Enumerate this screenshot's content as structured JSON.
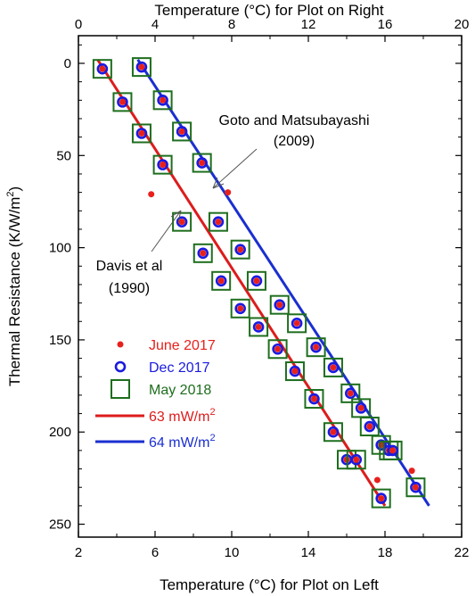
{
  "chart_data": {
    "type": "scatter",
    "x_bottom_label": "Temperature (°C) for Plot on Left",
    "x_top_label": "Temperature (°C) for Plot on Right",
    "ylabel_main": "Thermal Resistance (K/W/m",
    "ylabel_sup": "2",
    "ylabel_end": ")",
    "x_bottom_range": [
      2,
      22
    ],
    "x_top_range": [
      0,
      20
    ],
    "y_range": [
      -15,
      257
    ],
    "y_inverted": true,
    "x_bottom_ticks": [
      "2",
      "6",
      "10",
      "14",
      "18",
      "22"
    ],
    "x_bottom_tick_values": [
      2,
      6,
      10,
      14,
      18,
      22
    ],
    "x_top_ticks": [
      "0",
      "4",
      "8",
      "12",
      "16",
      "20"
    ],
    "x_top_tick_values": [
      0,
      4,
      8,
      12,
      16,
      20
    ],
    "y_ticks": [
      "0",
      "50",
      "100",
      "150",
      "200",
      "250"
    ],
    "y_tick_values": [
      0,
      50,
      100,
      150,
      200,
      250
    ],
    "colors": {
      "june": "#e8201c",
      "dec": "#1a1ae0",
      "may": "#1e6e1e",
      "fit_left": "#dd1c1c",
      "fit_right": "#1a2fd0"
    },
    "fits": [
      {
        "legend_label": "63 mW/m",
        "legend_sup": "2",
        "color": "#dd1c1c",
        "axis": "bottom",
        "x": [
          3.0,
          18.0
        ],
        "y": [
          -2,
          240
        ]
      },
      {
        "legend_label": "64 mW/m",
        "legend_sup": "2",
        "color": "#1a2fd0",
        "axis": "bottom",
        "x": [
          5.1,
          20.3
        ],
        "y": [
          -2,
          240
        ]
      }
    ],
    "left_profile_x": [
      3.25,
      4.3,
      5.3,
      6.4,
      7.4,
      8.5,
      9.45,
      10.45,
      11.4,
      12.4,
      13.3,
      14.3,
      15.3,
      16.0,
      16.5,
      17.8
    ],
    "left_profile_y": [
      3,
      21,
      38,
      55,
      86,
      103,
      118,
      133,
      143,
      155,
      167,
      182,
      200,
      215,
      215,
      236
    ],
    "right_profile_x": [
      3.3,
      4.4,
      5.4,
      6.45,
      7.3,
      8.45,
      9.3,
      10.5,
      11.4,
      12.4,
      13.3,
      14.2,
      14.75,
      15.2,
      15.8,
      16.2,
      16.4,
      17.6
    ],
    "right_profile_y": [
      2,
      20,
      37,
      54,
      86,
      101,
      118,
      131,
      141,
      154,
      165,
      179,
      187,
      197,
      207,
      210,
      210,
      230
    ],
    "june_outliers_left": {
      "x": [
        5.8,
        17.6
      ],
      "y": [
        71,
        226
      ]
    },
    "june_outliers_right": {
      "x": [
        7.8,
        17.4
      ],
      "y": [
        70,
        221
      ]
    },
    "series": [
      {
        "name": "June 2017",
        "marker": "dot"
      },
      {
        "name": "Dec 2017",
        "marker": "circle"
      },
      {
        "name": "May 2018",
        "marker": "square"
      }
    ],
    "annotations": [
      {
        "text_lines": [
          "Goto and Matsubayashi",
          "(2009)"
        ]
      },
      {
        "text_lines": [
          "Davis et al",
          "(1990)"
        ]
      }
    ],
    "grid": false,
    "legend_placement": "bottom-left"
  }
}
